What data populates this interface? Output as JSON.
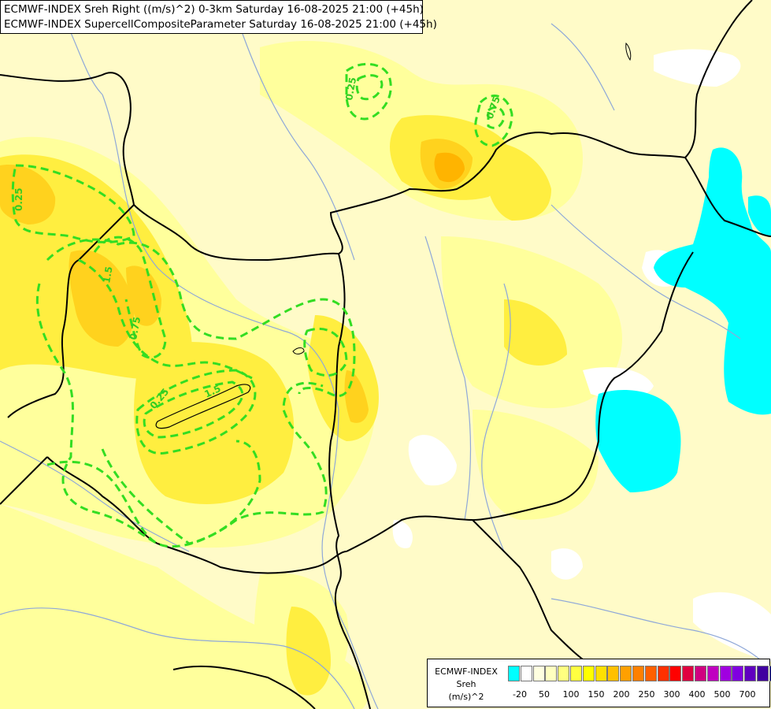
{
  "header": {
    "line1": "ECMWF-INDEX Sreh Right ((m/s)^2) 0-3km Saturday 16-08-2025 21:00 (+45h)",
    "line2": "ECMWF-INDEX SupercellCompositeParameter Saturday 16-08-2025 21:00 (+45h)"
  },
  "legend": {
    "line1": "ECMWF-INDEX",
    "line2": "Sreh",
    "line3": "(m/s)^2",
    "colors": [
      "#00ffff",
      "#ffffff",
      "#ffffe0",
      "#ffffc0",
      "#ffff80",
      "#ffff40",
      "#ffff00",
      "#ffe000",
      "#ffc000",
      "#ffa000",
      "#ff8000",
      "#ff6000",
      "#ff3000",
      "#ff0000",
      "#e00040",
      "#d00080",
      "#c000c0",
      "#a000e0",
      "#8000e0",
      "#6000c0",
      "#4000a0",
      "#000080"
    ],
    "tick_labels": [
      "-20",
      "50",
      "100",
      "150",
      "200",
      "250",
      "300",
      "400",
      "500",
      "700"
    ]
  },
  "contour_labels": [
    "0.25",
    "0.25",
    "0.75",
    "0.75",
    "0.25",
    "1.5",
    "1.5"
  ],
  "colors": {
    "background": "#fffbc8",
    "cyan": "#00ffff",
    "contour": "#33dd22",
    "border": "#000000",
    "river": "#8fa8d8"
  }
}
